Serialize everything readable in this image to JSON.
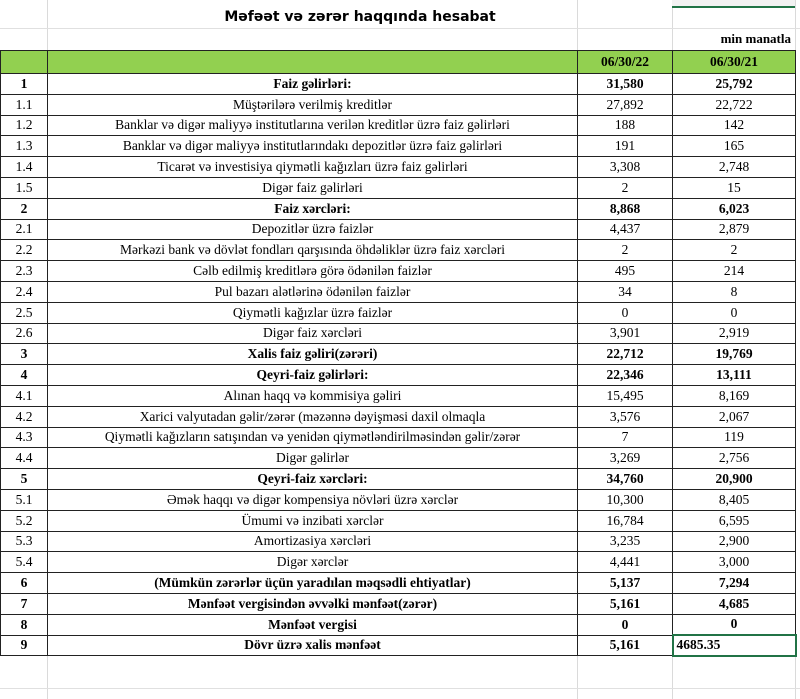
{
  "sheet": {
    "title": "Məfəət və zərər haqqında hesabat",
    "unit": "min manatla",
    "columns": [
      "",
      "",
      "06/30/22",
      "06/30/21"
    ],
    "rows": [
      {
        "no": "1",
        "label": "Faiz gəlirləri:",
        "v22": "31,580",
        "v21": "25,792",
        "bold": true
      },
      {
        "no": "1.1",
        "label": "Müştərilərə verilmiş kreditlər",
        "v22": "27,892",
        "v21": "22,722"
      },
      {
        "no": "1.2",
        "label": "Banklar və digər maliyyə institutlarına verilən kreditlər üzrə faiz gəlirləri",
        "v22": "188",
        "v21": "142"
      },
      {
        "no": "1.3",
        "label": "Banklar və digər maliyyə institutlarındakı depozitlər üzrə faiz gəlirləri",
        "v22": "191",
        "v21": "165"
      },
      {
        "no": "1.4",
        "label": "Ticarət və investisiya qiymətli kağızları üzrə faiz gəlirləri",
        "v22": "3,308",
        "v21": "2,748"
      },
      {
        "no": "1.5",
        "label": "Digər faiz gəlirləri",
        "v22": "2",
        "v21": "15"
      },
      {
        "no": "2",
        "label": "Faiz xərcləri:",
        "v22": "8,868",
        "v21": "6,023",
        "bold": true
      },
      {
        "no": "2.1",
        "label": "Depozitlər üzrə faizlər",
        "v22": "4,437",
        "v21": "2,879"
      },
      {
        "no": "2.2",
        "label": "Mərkəzi bank və dövlət fondları qarşısında öhdəliklər üzrə faiz xərcləri",
        "v22": "2",
        "v21": "2"
      },
      {
        "no": "2.3",
        "label": "Cəlb edilmiş kreditlərə görə ödənilən faizlər",
        "v22": "495",
        "v21": "214"
      },
      {
        "no": "2.4",
        "label": "Pul bazarı alətlərinə ödənilən faizlər",
        "v22": "34",
        "v21": "8"
      },
      {
        "no": "2.5",
        "label": "Qiymətli kağızlar üzrə faizlər",
        "v22": "0",
        "v21": "0"
      },
      {
        "no": "2.6",
        "label": "Digər faiz xərcləri",
        "v22": "3,901",
        "v21": "2,919"
      },
      {
        "no": "3",
        "label": "Xalis faiz gəliri(zərəri)",
        "v22": "22,712",
        "v21": "19,769",
        "bold": true
      },
      {
        "no": "4",
        "label": "Qeyri-faiz gəlirləri:",
        "v22": "22,346",
        "v21": "13,111",
        "bold": true
      },
      {
        "no": "4.1",
        "label": "Alınan haqq və kommisiya gəliri",
        "v22": "15,495",
        "v21": "8,169"
      },
      {
        "no": "4.2",
        "label": "Xarici valyutadan gəlir/zərər (məzənnə dəyişməsi daxil olmaqla",
        "v22": "3,576",
        "v21": "2,067"
      },
      {
        "no": "4.3",
        "label": "Qiymətli kağızların satışından və yenidən qiymətləndirilməsindən gəlir/zərər",
        "v22": "7",
        "v21": "119"
      },
      {
        "no": "4.4",
        "label": "Digər gəlirlər",
        "v22": "3,269",
        "v21": "2,756"
      },
      {
        "no": "5",
        "label": "Qeyri-faiz xərcləri:",
        "v22": "34,760",
        "v21": "20,900",
        "bold": true
      },
      {
        "no": "5.1",
        "label": "Əmək haqqı və digər kompensiya növləri üzrə xərclər",
        "v22": "10,300",
        "v21": "8,405"
      },
      {
        "no": "5.2",
        "label": "Ümumi və inzibati xərclər",
        "v22": "16,784",
        "v21": "6,595"
      },
      {
        "no": "5.3",
        "label": "Amortizasiya xərcləri",
        "v22": "3,235",
        "v21": "2,900"
      },
      {
        "no": "5.4",
        "label": "Digər xərclər",
        "v22": "4,441",
        "v21": "3,000"
      },
      {
        "no": "6",
        "label": "(Mümkün zərərlər üçün yaradılan məqsədli ehtiyatlar)",
        "v22": "5,137",
        "v21": "7,294",
        "bold": true
      },
      {
        "no": "7",
        "label": "Mənfəət vergisindən əvvəlki mənfəət(zərər)",
        "v22": "5,161",
        "v21": "4,685",
        "bold": true
      },
      {
        "no": "8",
        "label": "Mənfəət vergisi",
        "v22": "0",
        "v21": "0",
        "bold": true
      },
      {
        "no": "9",
        "label": "Dövr üzrə xalis mənfəət",
        "v22": "5,161",
        "v21": "4685.35",
        "bold": true,
        "selected": true
      }
    ]
  },
  "colors": {
    "header_fill": "#92d050",
    "selection": "#217346"
  }
}
